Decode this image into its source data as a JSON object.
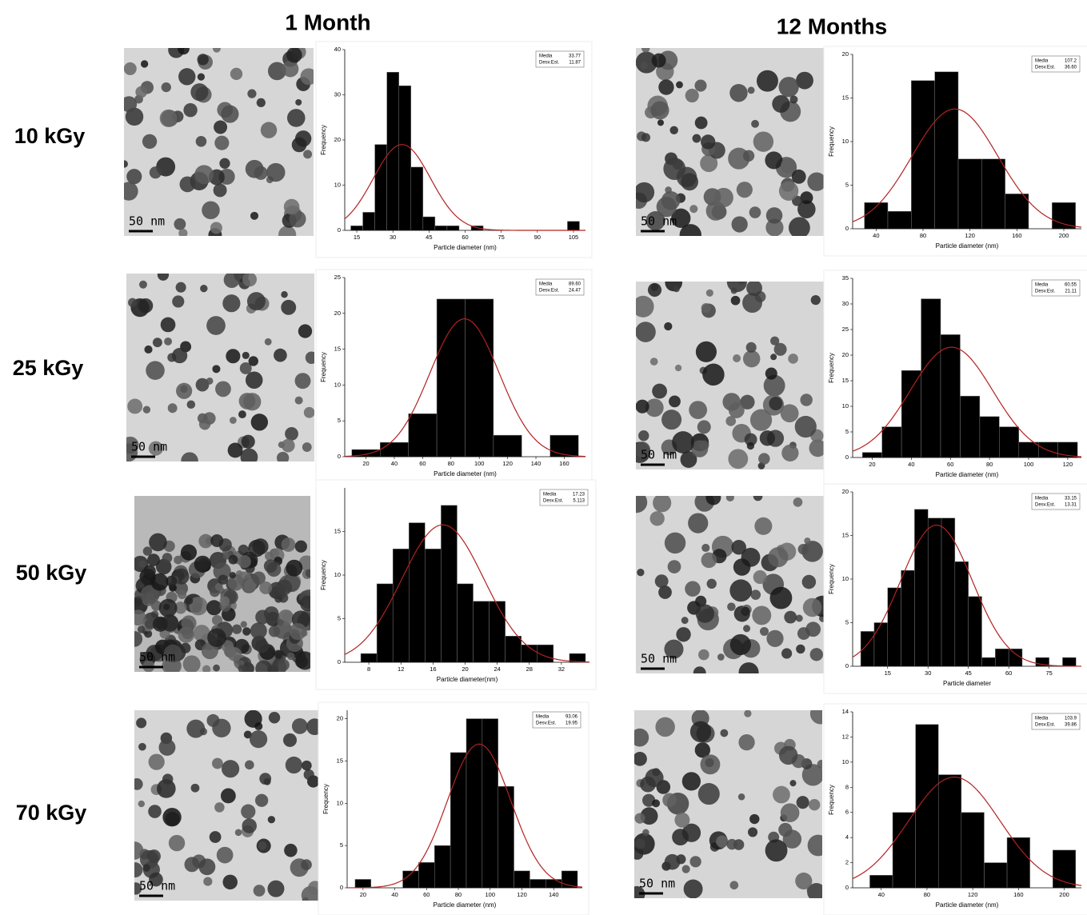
{
  "column_headers": [
    "1 Month",
    "12 Months"
  ],
  "row_labels": [
    "10 kGy",
    "25 kGy",
    "50 kGy",
    "70 kGy"
  ],
  "images": [
    {
      "scale": "50 nm"
    },
    {
      "scale": "50 nm"
    },
    {
      "scale": "50 nm"
    },
    {
      "scale": "50 nm"
    },
    {
      "scale": "50 nm"
    },
    {
      "scale": "50 nm"
    },
    {
      "scale": "50 nm"
    },
    {
      "scale": "50 nm"
    }
  ],
  "chart_data": [
    {
      "type": "histogram",
      "xlabel": "Particle diameter (nm)",
      "ylabel": "Frequency",
      "color": "#000000",
      "fit_color": "#b22222",
      "bins": [
        12.5,
        17.5,
        22.5,
        27.5,
        32.5,
        37.5,
        42.5,
        47.5,
        52.5,
        57.5,
        62.5,
        67.5,
        72.5,
        77.5,
        82.5,
        87.5,
        92.5,
        97.5,
        102.5,
        107.5
      ],
      "counts": [
        1,
        4,
        19,
        35,
        32,
        14,
        3,
        1,
        1,
        0,
        1,
        0,
        0,
        0,
        0,
        0,
        0,
        0,
        2
      ],
      "xlim": [
        10,
        110
      ],
      "ylim": [
        0,
        40
      ],
      "xticks": [
        15,
        30,
        45,
        60,
        75,
        90,
        105
      ],
      "yticks": [
        0,
        10,
        20,
        30,
        40
      ],
      "stats": [
        {
          "name": "Media",
          "value": 33.77,
          "label": "33.77"
        },
        {
          "name": "Desv.Est.",
          "value": 11.87,
          "label": "11.87"
        }
      ]
    },
    {
      "type": "histogram",
      "xlabel": "Particle diameter (nm)",
      "ylabel": "Frequency",
      "color": "#000000",
      "fit_color": "#b22222",
      "bins": [
        30,
        50,
        70,
        90,
        110,
        130,
        150,
        170,
        190,
        210
      ],
      "counts": [
        3,
        2,
        17,
        18,
        8,
        8,
        4,
        0,
        3
      ],
      "xlim": [
        20,
        215
      ],
      "ylim": [
        0,
        20
      ],
      "xticks": [
        40,
        80,
        120,
        160,
        200
      ],
      "yticks": [
        0,
        5,
        10,
        15,
        20
      ],
      "stats": [
        {
          "name": "Media",
          "value": 107.2,
          "label": "107.2"
        },
        {
          "name": "Desv.Est.",
          "value": 36.6,
          "label": "36.60"
        }
      ]
    },
    {
      "type": "histogram",
      "xlabel": "Particle diameter (nm)",
      "ylabel": "Frequency",
      "color": "#000000",
      "fit_color": "#b22222",
      "bins": [
        10,
        30,
        50,
        70,
        90,
        110,
        130,
        150,
        170
      ],
      "counts": [
        1,
        2,
        6,
        22,
        22,
        3,
        0,
        3
      ],
      "xlim": [
        5,
        175
      ],
      "ylim": [
        0,
        25
      ],
      "xticks": [
        20,
        40,
        60,
        80,
        100,
        120,
        140,
        160
      ],
      "yticks": [
        0,
        5,
        10,
        15,
        20,
        25
      ],
      "stats": [
        {
          "name": "Media",
          "value": 89.6,
          "label": "89.60"
        },
        {
          "name": "Desv.Est.",
          "value": 24.47,
          "label": "24.47"
        }
      ]
    },
    {
      "type": "histogram",
      "xlabel": "Particle diameter (nm)",
      "ylabel": "Frequency",
      "color": "#000000",
      "fit_color": "#b22222",
      "bins": [
        15,
        25,
        35,
        45,
        55,
        65,
        75,
        85,
        95,
        105,
        115,
        125
      ],
      "counts": [
        1,
        6,
        17,
        31,
        24,
        12,
        8,
        6,
        3,
        3,
        3
      ],
      "xlim": [
        10,
        127
      ],
      "ylim": [
        0,
        35
      ],
      "xticks": [
        20,
        40,
        60,
        80,
        100,
        120
      ],
      "yticks": [
        0,
        5,
        10,
        15,
        20,
        25,
        30,
        35
      ],
      "stats": [
        {
          "name": "Media",
          "value": 60.55,
          "label": "60.55"
        },
        {
          "name": "Desv.Est.",
          "value": 21.11,
          "label": "21.11"
        }
      ]
    },
    {
      "type": "histogram",
      "xlabel": "Particle diameter(nm)",
      "ylabel": "Frequency",
      "color": "#000000",
      "fit_color": "#b22222",
      "bins": [
        7,
        9,
        11,
        13,
        15,
        17,
        19,
        21,
        23,
        25,
        27,
        29,
        31,
        33,
        35
      ],
      "counts": [
        1,
        9,
        13,
        16,
        13,
        18,
        9,
        7,
        7,
        3,
        2,
        2,
        0,
        1
      ],
      "xlim": [
        5,
        35.5
      ],
      "ylim": [
        0,
        20
      ],
      "xticks": [
        8,
        12,
        16,
        20,
        24,
        28,
        32
      ],
      "yticks": [
        0,
        5,
        10,
        15
      ],
      "stats": [
        {
          "name": "Media",
          "value": 17.23,
          "label": "17.23"
        },
        {
          "name": "Desv.Est.",
          "value": 5.113,
          "label": "5.113"
        }
      ]
    },
    {
      "type": "histogram",
      "xlabel": "Particle diameter",
      "ylabel": "Frequency",
      "color": "#000000",
      "fit_color": "#b22222",
      "bins": [
        5,
        10,
        15,
        20,
        25,
        30,
        35,
        40,
        45,
        50,
        55,
        60,
        65,
        70,
        75,
        80,
        85
      ],
      "counts": [
        4,
        5,
        9,
        11,
        18,
        17,
        17,
        12,
        8,
        1,
        2,
        2,
        0,
        1,
        0,
        1
      ],
      "xlim": [
        2,
        87
      ],
      "ylim": [
        0,
        20
      ],
      "xticks": [
        15,
        30,
        45,
        60,
        75
      ],
      "yticks": [
        0,
        5,
        10,
        15,
        20
      ],
      "stats": [
        {
          "name": "Media",
          "value": 33.15,
          "label": "33.15"
        },
        {
          "name": "Desv.Est.",
          "value": 13.31,
          "label": "13.31"
        }
      ]
    },
    {
      "type": "histogram",
      "xlabel": "Particle diameter (nm)",
      "ylabel": "Frequency",
      "color": "#000000",
      "fit_color": "#b22222",
      "bins": [
        15,
        25,
        35,
        45,
        55,
        65,
        75,
        85,
        95,
        105,
        115,
        125,
        135,
        145,
        155
      ],
      "counts": [
        1,
        0,
        0,
        2,
        3,
        5,
        16,
        20,
        20,
        12,
        2,
        1,
        1,
        2
      ],
      "xlim": [
        10,
        158
      ],
      "ylim": [
        0,
        21
      ],
      "xticks": [
        20,
        40,
        60,
        80,
        100,
        120,
        140
      ],
      "yticks": [
        0,
        5,
        10,
        15,
        20
      ],
      "stats": [
        {
          "name": "Media",
          "value": 93.06,
          "label": "93.06"
        },
        {
          "name": "Desv.Est.",
          "value": 19.95,
          "label": "19.95"
        }
      ]
    },
    {
      "type": "histogram",
      "xlabel": "Particle diameter (nm)",
      "ylabel": "Frequency",
      "color": "#000000",
      "fit_color": "#b22222",
      "bins": [
        30,
        50,
        70,
        90,
        110,
        130,
        150,
        170,
        190,
        210
      ],
      "counts": [
        1,
        6,
        13,
        9,
        6,
        2,
        4,
        0,
        3
      ],
      "xlim": [
        15,
        215
      ],
      "ylim": [
        0,
        14
      ],
      "xticks": [
        40,
        80,
        120,
        160,
        200
      ],
      "yticks": [
        0,
        2,
        4,
        6,
        8,
        10,
        12,
        14
      ],
      "stats": [
        {
          "name": "Media",
          "value": 103.9,
          "label": "103.9"
        },
        {
          "name": "Desv.Est.",
          "value": 39.86,
          "label": "39.86"
        }
      ]
    }
  ]
}
